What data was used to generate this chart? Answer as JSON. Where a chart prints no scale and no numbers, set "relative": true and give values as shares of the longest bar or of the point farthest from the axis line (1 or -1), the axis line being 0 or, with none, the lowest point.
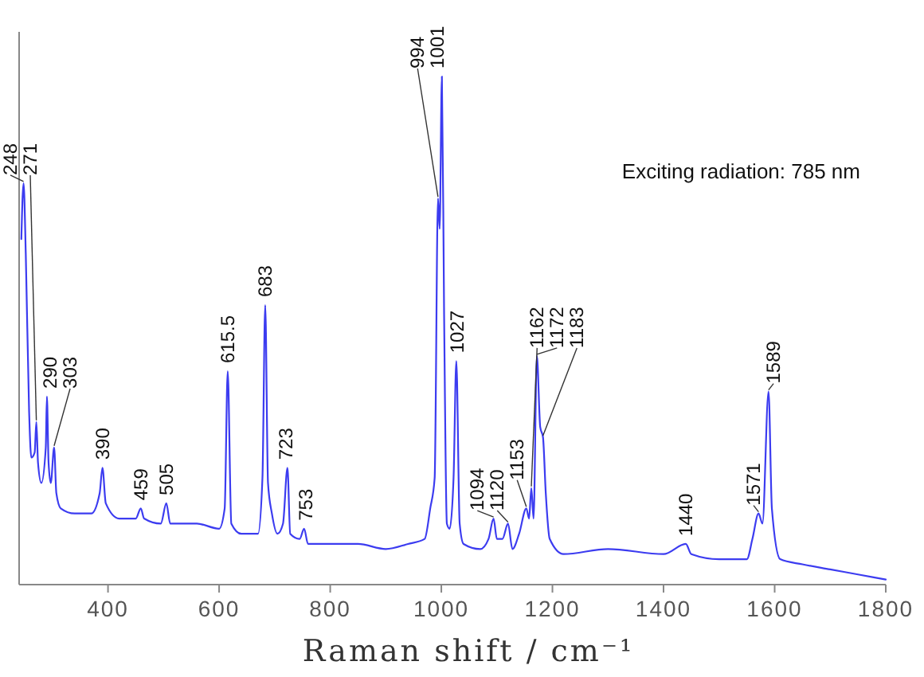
{
  "chart_data": {
    "type": "line",
    "relative": true,
    "xlabel": "Raman shift / cm⁻¹",
    "xlim": [
      240,
      1800
    ],
    "xticks": [
      400,
      600,
      800,
      1000,
      1200,
      1400,
      1600,
      1800
    ],
    "x": [
      244,
      248,
      252,
      258,
      262,
      268,
      271,
      274,
      280,
      288,
      290,
      293,
      297,
      303,
      307,
      315,
      340,
      370,
      385,
      390,
      396,
      420,
      450,
      459,
      465,
      495,
      505,
      512,
      540,
      560,
      600,
      610,
      615.5,
      622,
      640,
      670,
      678,
      683,
      688,
      695,
      705,
      715,
      723,
      728,
      745,
      753,
      760,
      800,
      850,
      900,
      940,
      970,
      980,
      988,
      994,
      997,
      1001,
      1005,
      1010,
      1015,
      1022,
      1027,
      1033,
      1040,
      1070,
      1085,
      1094,
      1100,
      1110,
      1120,
      1128,
      1140,
      1153,
      1158,
      1162,
      1166,
      1172,
      1178,
      1183,
      1188,
      1195,
      1220,
      1300,
      1400,
      1440,
      1450,
      1500,
      1550,
      1560,
      1571,
      1578,
      1589,
      1595,
      1610,
      1650,
      1700,
      1750,
      1800
    ],
    "values": [
      0.68,
      0.79,
      0.65,
      0.34,
      0.25,
      0.26,
      0.32,
      0.24,
      0.2,
      0.27,
      0.37,
      0.24,
      0.2,
      0.27,
      0.18,
      0.15,
      0.14,
      0.14,
      0.18,
      0.23,
      0.16,
      0.13,
      0.13,
      0.15,
      0.13,
      0.12,
      0.16,
      0.12,
      0.12,
      0.12,
      0.11,
      0.15,
      0.42,
      0.12,
      0.1,
      0.1,
      0.21,
      0.55,
      0.2,
      0.14,
      0.1,
      0.12,
      0.23,
      0.1,
      0.09,
      0.11,
      0.08,
      0.08,
      0.08,
      0.07,
      0.08,
      0.09,
      0.15,
      0.21,
      0.76,
      0.7,
      1,
      0.53,
      0.12,
      0.11,
      0.21,
      0.44,
      0.12,
      0.08,
      0.07,
      0.09,
      0.13,
      0.09,
      0.09,
      0.12,
      0.07,
      0.1,
      0.15,
      0.13,
      0.19,
      0.13,
      0.45,
      0.31,
      0.29,
      0.18,
      0.09,
      0.06,
      0.07,
      0.06,
      0.08,
      0.06,
      0.05,
      0.05,
      0.09,
      0.14,
      0.12,
      0.38,
      0.15,
      0.05,
      0.04,
      0.03,
      0.02,
      0.01
    ],
    "color": "#3c3cf0",
    "annotations": [
      {
        "text": "248",
        "x": 248,
        "y": 0.79
      },
      {
        "text": "271",
        "x": 271,
        "y": 0.32
      },
      {
        "text": "290",
        "x": 290,
        "y": 0.37
      },
      {
        "text": "303",
        "x": 303,
        "y": 0.27
      },
      {
        "text": "390",
        "x": 390,
        "y": 0.23
      },
      {
        "text": "459",
        "x": 459,
        "y": 0.15
      },
      {
        "text": "505",
        "x": 505,
        "y": 0.16
      },
      {
        "text": "615.5",
        "x": 615.5,
        "y": 0.42
      },
      {
        "text": "683",
        "x": 683,
        "y": 0.55
      },
      {
        "text": "723",
        "x": 723,
        "y": 0.23
      },
      {
        "text": "753",
        "x": 753,
        "y": 0.11
      },
      {
        "text": "994",
        "x": 994,
        "y": 0.76
      },
      {
        "text": "1001",
        "x": 1001,
        "y": 1
      },
      {
        "text": "1027",
        "x": 1027,
        "y": 0.44
      },
      {
        "text": "1094",
        "x": 1094,
        "y": 0.13
      },
      {
        "text": "1120",
        "x": 1120,
        "y": 0.12
      },
      {
        "text": "1153",
        "x": 1153,
        "y": 0.15
      },
      {
        "text": "1162",
        "x": 1162,
        "y": 0.19
      },
      {
        "text": "1172",
        "x": 1172,
        "y": 0.45
      },
      {
        "text": "1183",
        "x": 1183,
        "y": 0.29
      },
      {
        "text": "1440",
        "x": 1440,
        "y": 0.08
      },
      {
        "text": "1571",
        "x": 1571,
        "y": 0.14
      },
      {
        "text": "1589",
        "x": 1589,
        "y": 0.38
      },
      "Exciting radiation: 785 nm"
    ]
  }
}
